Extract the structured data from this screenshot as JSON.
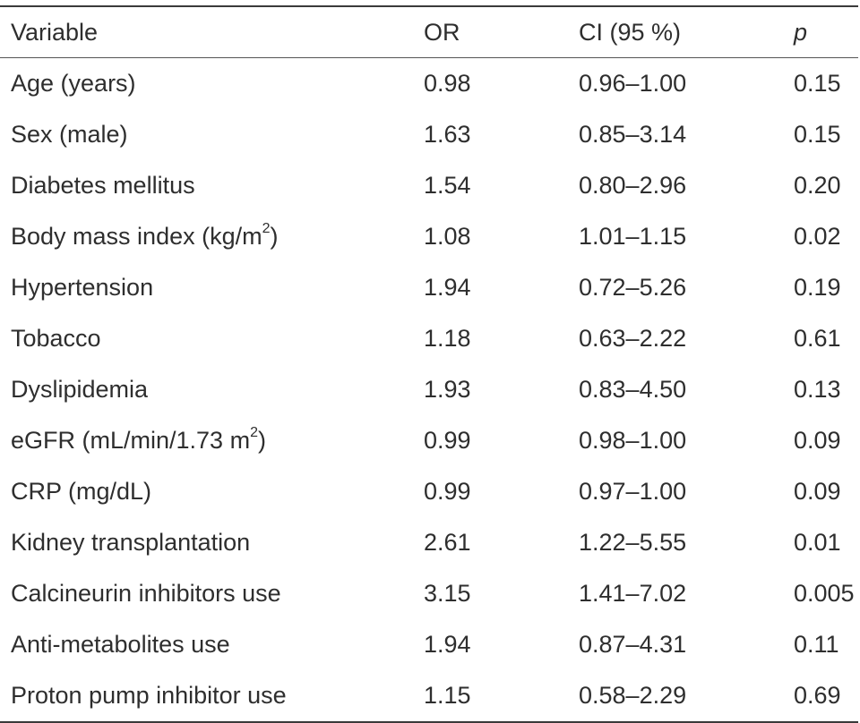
{
  "table": {
    "headers": {
      "variable": "Variable",
      "or": "OR",
      "ci": "CI (95 %)",
      "p": "p"
    },
    "rows": [
      {
        "variable": "Age (years)",
        "or": "0.98",
        "ci": "0.96–1.00",
        "p": "0.15"
      },
      {
        "variable": "Sex (male)",
        "or": "1.63",
        "ci": "0.85–3.14",
        "p": "0.15"
      },
      {
        "variable": "Diabetes mellitus",
        "or": "1.54",
        "ci": "0.80–2.96",
        "p": "0.20"
      },
      {
        "variable": "Body mass index (kg/m",
        "sup": "2",
        "after": ")",
        "or": "1.08",
        "ci": "1.01–1.15",
        "p": "0.02"
      },
      {
        "variable": "Hypertension",
        "or": "1.94",
        "ci": "0.72–5.26",
        "p": "0.19"
      },
      {
        "variable": "Tobacco",
        "or": "1.18",
        "ci": "0.63–2.22",
        "p": "0.61"
      },
      {
        "variable": "Dyslipidemia",
        "or": "1.93",
        "ci": "0.83–4.50",
        "p": "0.13"
      },
      {
        "variable": "eGFR (mL/min/1.73 m",
        "sup": "2",
        "after": ")",
        "or": "0.99",
        "ci": "0.98–1.00",
        "p": "0.09"
      },
      {
        "variable": "CRP (mg/dL)",
        "or": "0.99",
        "ci": "0.97–1.00",
        "p": "0.09"
      },
      {
        "variable": "Kidney transplantation",
        "or": "2.61",
        "ci": "1.22–5.55",
        "p": "0.01"
      },
      {
        "variable": "Calcineurin inhibitors use",
        "or": "3.15",
        "ci": "1.41–7.02",
        "p": "0.005"
      },
      {
        "variable": "Anti-metabolites use",
        "or": "1.94",
        "ci": "0.87–4.31",
        "p": "0.11"
      },
      {
        "variable": "Proton pump inhibitor use",
        "or": "1.15",
        "ci": "0.58–2.29",
        "p": "0.69"
      }
    ]
  }
}
